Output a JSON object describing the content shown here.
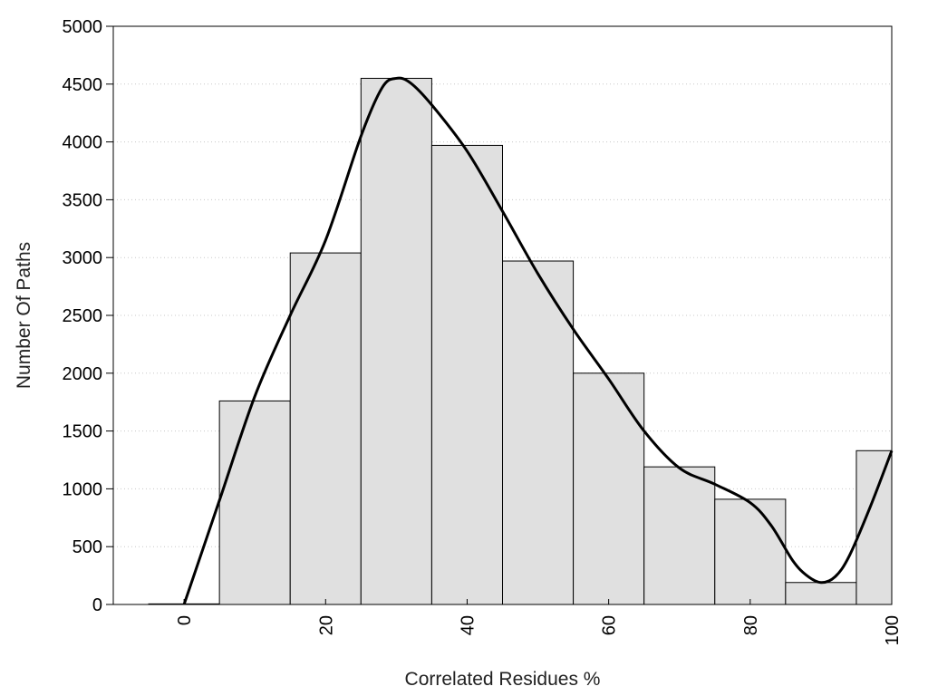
{
  "chart_data": {
    "type": "bar",
    "xlabel": "Correlated Residues %",
    "ylabel": "Number Of Paths",
    "x_ticks": [
      0,
      20,
      40,
      60,
      80,
      100
    ],
    "y_ticks": [
      0,
      500,
      1000,
      1500,
      2000,
      2500,
      3000,
      3500,
      4000,
      4500,
      5000
    ],
    "xlim": [
      -10,
      100
    ],
    "ylim": [
      0,
      5000
    ],
    "grid": "horizontal-dotted",
    "bin_width": 10,
    "bins": [
      {
        "center": 0,
        "value": 5
      },
      {
        "center": 10,
        "value": 1760
      },
      {
        "center": 20,
        "value": 3040
      },
      {
        "center": 30,
        "value": 4550
      },
      {
        "center": 40,
        "value": 3970
      },
      {
        "center": 50,
        "value": 2970
      },
      {
        "center": 60,
        "value": 2000
      },
      {
        "center": 70,
        "value": 1190
      },
      {
        "center": 80,
        "value": 910
      },
      {
        "center": 90,
        "value": 190
      },
      {
        "center": 100,
        "value": 1330
      }
    ],
    "curve": {
      "type": "line",
      "x": [
        0,
        5,
        10,
        15,
        20,
        25,
        28,
        30,
        32,
        35,
        40,
        45,
        50,
        55,
        60,
        65,
        70,
        75,
        80,
        83,
        86,
        88,
        90,
        92,
        94,
        97,
        100
      ],
      "y": [
        0,
        900,
        1800,
        2500,
        3150,
        4050,
        4470,
        4550,
        4510,
        4320,
        3920,
        3400,
        2860,
        2380,
        1950,
        1500,
        1180,
        1040,
        880,
        680,
        380,
        250,
        190,
        240,
        420,
        850,
        1330
      ]
    }
  }
}
